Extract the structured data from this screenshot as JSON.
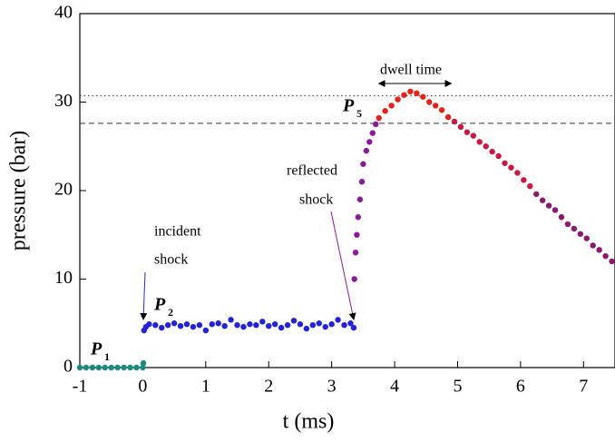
{
  "chart_data": {
    "type": "scatter",
    "xlabel": "t (ms)",
    "ylabel": "pressure (bar)",
    "xlim": [
      -1,
      7.5
    ],
    "xticks": [
      -1,
      0,
      1,
      2,
      3,
      4,
      5,
      6,
      7
    ],
    "ylim": [
      0,
      40
    ],
    "yticks": [
      0,
      10,
      20,
      30,
      40
    ],
    "hlines": [
      {
        "y": 30.7,
        "style": "dotted"
      },
      {
        "y": 27.6,
        "style": "dashed"
      }
    ],
    "dwell_range": [
      3.75,
      4.9
    ],
    "annotations": [
      {
        "text": "incident",
        "color": "#2a2ae0"
      },
      {
        "text": "shock",
        "color": "#2a2ae0"
      },
      {
        "text": "reflected",
        "color": "#8a1a9a"
      },
      {
        "text": "shock",
        "color": "#8a1a9a"
      },
      {
        "text": "dwell time",
        "color": "#000000"
      },
      {
        "text": "P",
        "sub": "1",
        "color": "#1a8a80"
      },
      {
        "text": "P",
        "sub": "2",
        "color": "#2222dd"
      },
      {
        "text": "P",
        "sub": "5",
        "color": "#e8201a"
      }
    ],
    "series": [
      {
        "color": "#1a8a80",
        "x": [
          -1,
          -0.9,
          -0.8,
          -0.7,
          -0.6,
          -0.5,
          -0.4,
          -0.3,
          -0.2,
          -0.1,
          0,
          0.01
        ],
        "values": [
          0,
          0,
          0,
          0,
          0,
          0,
          0,
          0,
          0,
          0,
          0,
          0.5
        ]
      },
      {
        "color": "#2222dd",
        "x": [
          0.02,
          0.05,
          0.1,
          0.2,
          0.3,
          0.4,
          0.5,
          0.6,
          0.7,
          0.8,
          0.9,
          1.0,
          1.1,
          1.2,
          1.3,
          1.4,
          1.5,
          1.6,
          1.7,
          1.8,
          1.9,
          2.0,
          2.1,
          2.2,
          2.3,
          2.4,
          2.5,
          2.6,
          2.7,
          2.8,
          2.9,
          3.0,
          3.1,
          3.2,
          3.3,
          3.35
        ],
        "values": [
          4.2,
          4.6,
          4.9,
          4.8,
          4.5,
          4.8,
          5.0,
          4.7,
          4.9,
          4.6,
          4.8,
          4.2,
          4.9,
          5.0,
          4.7,
          5.4,
          4.8,
          4.6,
          4.9,
          4.8,
          5.2,
          4.7,
          4.9,
          4.5,
          4.8,
          5.3,
          4.9,
          4.4,
          4.8,
          5.0,
          4.6,
          4.9,
          5.4,
          4.8,
          5.0,
          4.5
        ]
      },
      {
        "color": "#8a1a9a",
        "x": [
          3.36,
          3.38,
          3.4,
          3.42,
          3.45,
          3.48,
          3.5,
          3.55,
          3.6,
          3.65,
          3.7
        ],
        "values": [
          10,
          13,
          15,
          17,
          19,
          21,
          23,
          24.5,
          25.5,
          26.5,
          27.5
        ]
      },
      {
        "color": "#e8201a",
        "x": [
          3.75,
          3.85,
          3.95,
          4.05,
          4.15,
          4.25,
          4.35,
          4.45,
          4.55,
          4.65,
          4.75,
          4.85
        ],
        "values": [
          28.2,
          29,
          29.6,
          30.3,
          30.8,
          31.2,
          31,
          30.6,
          30,
          29.6,
          29.1,
          28.3
        ]
      },
      {
        "color": "#c81a40",
        "x": [
          4.95,
          5.05,
          5.15,
          5.25,
          5.35,
          5.45,
          5.55,
          5.65,
          5.75,
          5.85,
          5.95,
          6.05,
          6.15
        ],
        "values": [
          27.8,
          27.2,
          26.6,
          26.2,
          25.5,
          25,
          24.4,
          23.9,
          23.1,
          22.6,
          22,
          21.2,
          20.5
        ]
      },
      {
        "color": "#8a1a70",
        "x": [
          6.25,
          6.35,
          6.45,
          6.55,
          6.65,
          6.75,
          6.85,
          6.95,
          7.05,
          7.15,
          7.25,
          7.35,
          7.45
        ],
        "values": [
          19.6,
          18.9,
          18.3,
          17.8,
          17,
          16.2,
          15.7,
          15.1,
          14.6,
          13.8,
          13.3,
          12.6,
          12
        ]
      }
    ]
  }
}
